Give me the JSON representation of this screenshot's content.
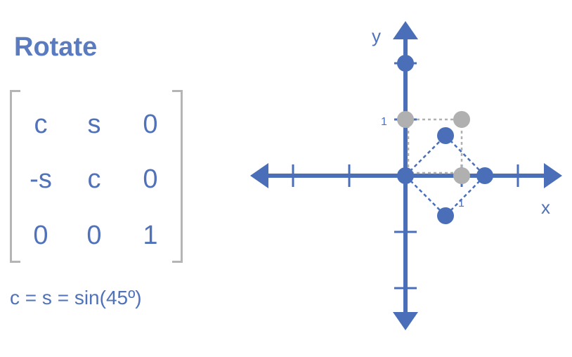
{
  "title": "Rotate",
  "matrix": [
    [
      "c",
      "s",
      "0"
    ],
    [
      "-s",
      "c",
      "0"
    ],
    [
      "0",
      "0",
      "1"
    ]
  ],
  "formula": "c = s = sin(45º)",
  "axes": {
    "x_label": "x",
    "y_label": "y",
    "x_tick_label": "1",
    "y_tick_label": "1"
  },
  "points": {
    "original": [
      [
        0,
        0
      ],
      [
        1,
        0
      ],
      [
        1,
        1
      ],
      [
        0,
        1
      ]
    ],
    "rotated": [
      [
        0,
        0
      ],
      [
        0.7071,
        -0.7071
      ],
      [
        1.4142,
        0
      ],
      [
        0.7071,
        0.7071
      ]
    ],
    "extra": [
      [
        0,
        2
      ]
    ]
  },
  "colors": {
    "blue": "#4a6fb8",
    "grey": "#b0b0b0",
    "text": "#4f72bb"
  }
}
